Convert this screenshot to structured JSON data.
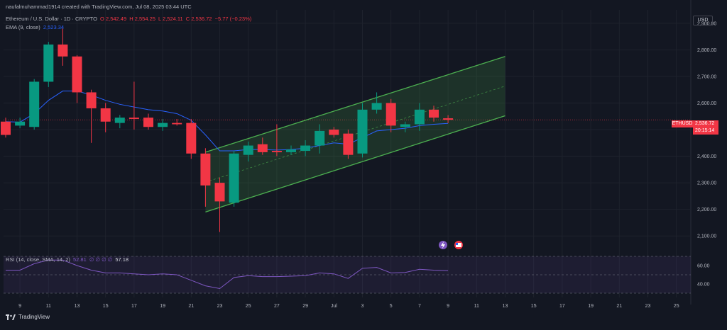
{
  "header": {
    "creator": "naufalmuhammad1914 created with TradingView.com, Jul 08, 2025 03:44 UTC",
    "symbol_line": "Ethereum / U.S. Dollar · 1D · CRYPTO",
    "open": "O 2,542.49",
    "high": "H 2,554.25",
    "low": "L 2,524.11",
    "close": "C 2,536.72",
    "change": "−5.77 (−0.23%)",
    "ema_label": "EMA (9, close)",
    "ema_value": "2,523.34"
  },
  "currency": "USD",
  "price_tag": {
    "symbol": "ETHUSD",
    "price": "2,536.72",
    "countdown": "20:15:14"
  },
  "rsi": {
    "label": "RSI (14, close, SMA, 14, 2)",
    "value_a": "52.81",
    "placeholders": "∅ ∅ ∅ ∅",
    "value_b": "57.18",
    "y_ticks": [
      "60.00",
      "40.00"
    ]
  },
  "footer": {
    "brand": "TradingView"
  },
  "colors": {
    "up": "#089981",
    "down": "#f23645",
    "ema": "#2962ff",
    "rsi": "#7e57c2",
    "channel": "#4caf50"
  },
  "chart_data": {
    "type": "candlestick",
    "title": "Ethereum / U.S. Dollar · 1D · CRYPTO",
    "ylim": [
      2050,
      2950
    ],
    "y_ticks": [
      2100,
      2200,
      2300,
      2400,
      2500,
      2600,
      2700,
      2800,
      2900
    ],
    "x_tick_labels": [
      "9",
      "11",
      "13",
      "15",
      "17",
      "19",
      "21",
      "23",
      "25",
      "27",
      "29",
      "Jul",
      "3",
      "5",
      "7",
      "9",
      "11",
      "13",
      "15",
      "17",
      "19",
      "21",
      "23",
      "25"
    ],
    "candles": [
      {
        "o": 2530,
        "h": 2545,
        "l": 2470,
        "c": 2480
      },
      {
        "o": 2515,
        "h": 2545,
        "l": 2505,
        "c": 2530
      },
      {
        "o": 2510,
        "h": 2690,
        "l": 2500,
        "c": 2680
      },
      {
        "o": 2680,
        "h": 2830,
        "l": 2660,
        "c": 2820
      },
      {
        "o": 2820,
        "h": 2880,
        "l": 2740,
        "c": 2775
      },
      {
        "o": 2775,
        "h": 2780,
        "l": 2600,
        "c": 2640
      },
      {
        "o": 2640,
        "h": 2650,
        "l": 2450,
        "c": 2580
      },
      {
        "o": 2580,
        "h": 2600,
        "l": 2490,
        "c": 2530
      },
      {
        "o": 2525,
        "h": 2555,
        "l": 2505,
        "c": 2545
      },
      {
        "o": 2545,
        "h": 2680,
        "l": 2500,
        "c": 2540
      },
      {
        "o": 2545,
        "h": 2560,
        "l": 2500,
        "c": 2510
      },
      {
        "o": 2510,
        "h": 2540,
        "l": 2495,
        "c": 2525
      },
      {
        "o": 2525,
        "h": 2540,
        "l": 2515,
        "c": 2520
      },
      {
        "o": 2525,
        "h": 2540,
        "l": 2390,
        "c": 2410
      },
      {
        "o": 2410,
        "h": 2430,
        "l": 2210,
        "c": 2290
      },
      {
        "o": 2300,
        "h": 2320,
        "l": 2115,
        "c": 2230
      },
      {
        "o": 2225,
        "h": 2420,
        "l": 2210,
        "c": 2410
      },
      {
        "o": 2405,
        "h": 2455,
        "l": 2380,
        "c": 2440
      },
      {
        "o": 2445,
        "h": 2470,
        "l": 2405,
        "c": 2415
      },
      {
        "o": 2420,
        "h": 2520,
        "l": 2400,
        "c": 2415
      },
      {
        "o": 2415,
        "h": 2440,
        "l": 2405,
        "c": 2425
      },
      {
        "o": 2420,
        "h": 2460,
        "l": 2400,
        "c": 2440
      },
      {
        "o": 2440,
        "h": 2520,
        "l": 2410,
        "c": 2495
      },
      {
        "o": 2500,
        "h": 2510,
        "l": 2470,
        "c": 2480
      },
      {
        "o": 2485,
        "h": 2500,
        "l": 2390,
        "c": 2405
      },
      {
        "o": 2410,
        "h": 2600,
        "l": 2395,
        "c": 2575
      },
      {
        "o": 2575,
        "h": 2640,
        "l": 2560,
        "c": 2600
      },
      {
        "o": 2600,
        "h": 2615,
        "l": 2490,
        "c": 2515
      },
      {
        "o": 2510,
        "h": 2530,
        "l": 2490,
        "c": 2520
      },
      {
        "o": 2520,
        "h": 2600,
        "l": 2495,
        "c": 2575
      },
      {
        "o": 2575,
        "h": 2590,
        "l": 2530,
        "c": 2545
      },
      {
        "o": 2542.49,
        "h": 2554.25,
        "l": 2524.11,
        "c": 2536.72
      }
    ],
    "ema": [
      2530,
      2528,
      2560,
      2610,
      2645,
      2645,
      2630,
      2610,
      2595,
      2585,
      2575,
      2570,
      2560,
      2535,
      2480,
      2420,
      2420,
      2425,
      2425,
      2423,
      2425,
      2430,
      2440,
      2450,
      2445,
      2470,
      2495,
      2500,
      2505,
      2515,
      2520,
      2523.34
    ],
    "rsi": [
      55,
      55,
      62,
      66,
      66,
      60,
      55,
      52,
      52,
      51,
      50,
      51,
      50,
      44,
      38,
      35,
      47,
      49,
      48,
      48,
      48.5,
      49,
      52,
      51,
      46,
      57,
      58,
      52,
      52.5,
      56,
      55,
      54.5
    ],
    "rsi_ylim": [
      30,
      70
    ],
    "channel": {
      "lower": [
        {
          "i": 14,
          "p": 2190
        },
        {
          "i": 35,
          "p": 2552
        }
      ],
      "upper": [
        {
          "i": 14,
          "p": 2415
        },
        {
          "i": 35,
          "p": 2775
        }
      ]
    }
  }
}
